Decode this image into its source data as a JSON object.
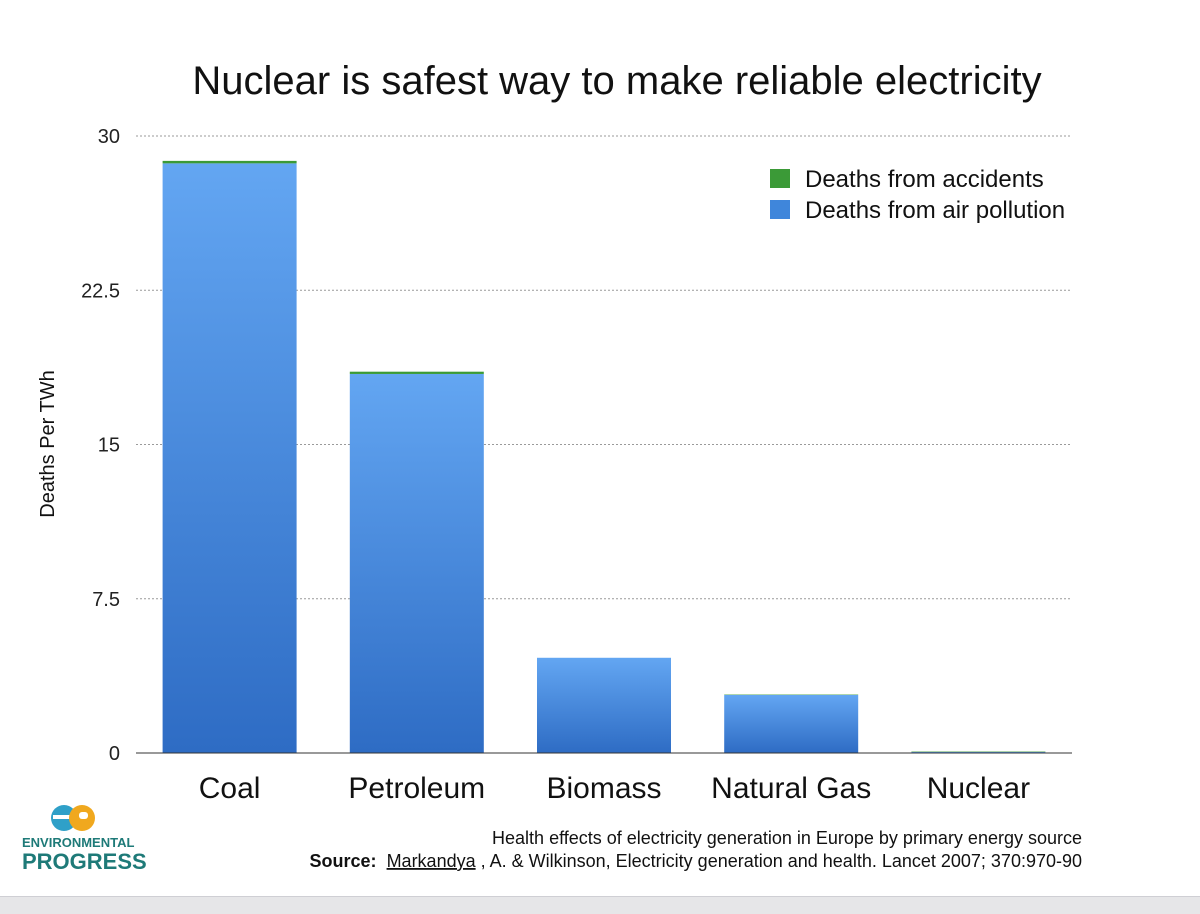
{
  "chart_data": {
    "type": "bar",
    "stacked": true,
    "title": "Nuclear is safest way to make reliable electricity",
    "xlabel": "",
    "ylabel": "Deaths Per TWh",
    "categories": [
      "Coal",
      "Petroleum",
      "Biomass",
      "Natural Gas",
      "Nuclear"
    ],
    "series": [
      {
        "name": "Deaths from air pollution",
        "color": "#3f86db",
        "values": [
          28.67,
          18.43,
          4.63,
          2.82,
          0.05
        ]
      },
      {
        "name": "Deaths from accidents",
        "color": "#3b9a37",
        "values": [
          0.12,
          0.11,
          0.0,
          0.02,
          0.02
        ]
      }
    ],
    "ylim": [
      0,
      30
    ],
    "yticks": [
      "0",
      "7.5",
      "15",
      "22.5",
      "30"
    ],
    "grid": true,
    "legend_position": "top-right"
  },
  "footnote": {
    "line1": "Health effects of electricity generation in Europe by primary energy source",
    "source_label": "Source:",
    "source_author": "Markandya",
    "source_rest": ", A. & Wilkinson, Electricity generation and health. Lancet 2007; 370:970-90"
  },
  "logo": {
    "mark": "ep",
    "line1": "ENVIRONMENTAL",
    "line2": "PROGRESS",
    "colors": {
      "e": "#2fa0c8",
      "p": "#f0a81e",
      "text": "#1e7a78"
    }
  }
}
